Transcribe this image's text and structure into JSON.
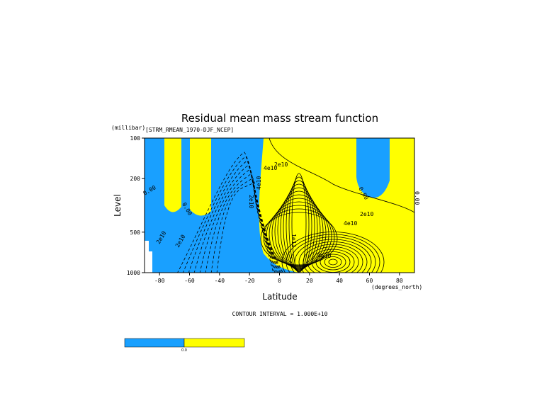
{
  "chart_data": {
    "type": "contour",
    "title": "Residual mean mass stream function",
    "subtitle": "[STRM_RMEAN_1970-DJF_NCEP]",
    "x_label": "Latitude",
    "x_unit": "(degrees_north)",
    "y_label": "Level",
    "y_unit": "(millibar)",
    "xlim": [
      -90,
      90
    ],
    "xticks": [
      -80,
      -60,
      -40,
      -20,
      0,
      20,
      40,
      60,
      80
    ],
    "ylim": [
      1000,
      100
    ],
    "yticks": [
      100,
      200,
      500,
      1000
    ],
    "y_scale": "log",
    "negative_color": "#19a0ff",
    "positive_color": "#ffff00",
    "contour_interval": "CONTOUR INTERVAL = 1.000E+10",
    "colorbar_label": "0.0",
    "contour_labels": [
      "0.00",
      "0.00",
      "0.00",
      "0.00",
      "2e10",
      "2e10",
      "2e10",
      "4e10",
      "2e10",
      "4e10",
      "2e10",
      "4e10",
      "1e11",
      "4e10"
    ]
  }
}
